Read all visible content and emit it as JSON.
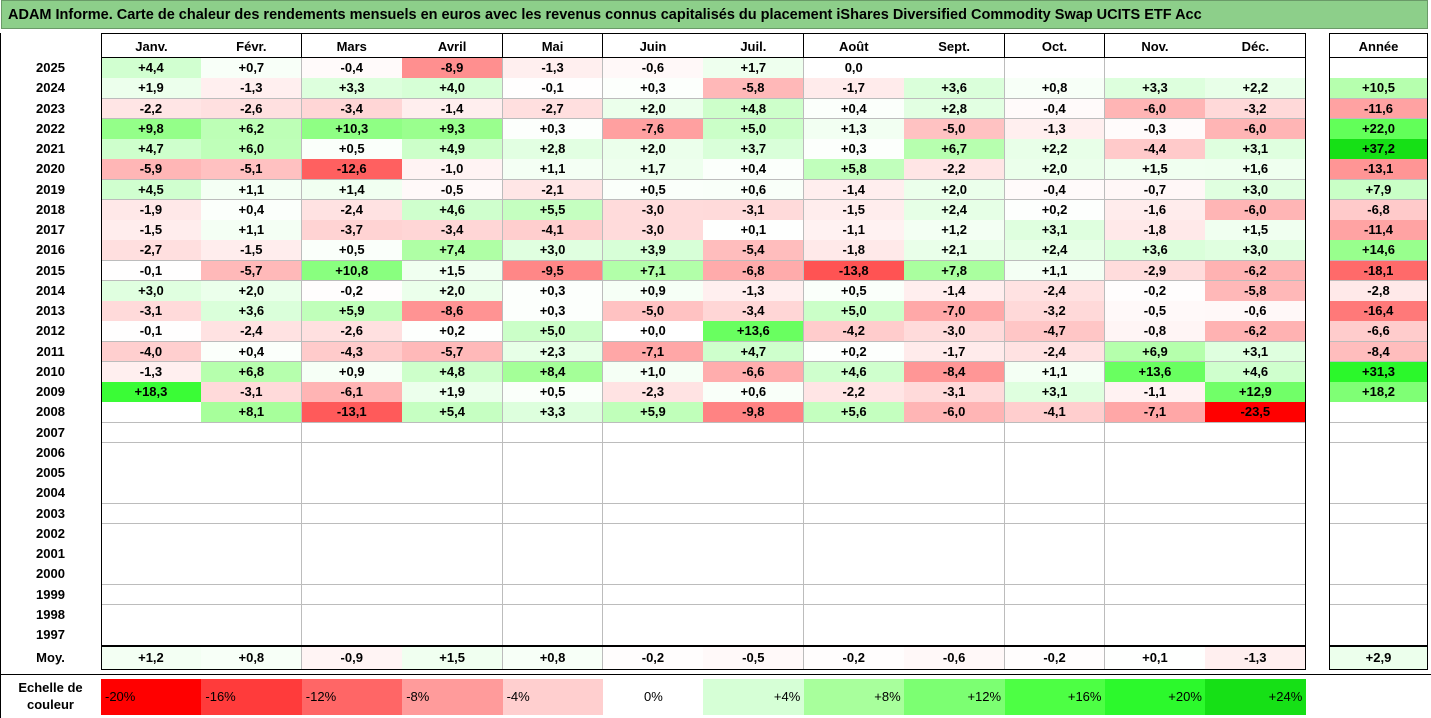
{
  "title": "ADAM Informe. Carte de chaleur des rendements mensuels en euros avec les revenus connus capitalisés du placement iShares Diversified Commodity Swap UCITS ETF Acc",
  "months": [
    "Janv.",
    "Févr.",
    "Mars",
    "Avril",
    "Mai",
    "Juin",
    "Juil.",
    "Août",
    "Sept.",
    "Oct.",
    "Nov.",
    "Déc."
  ],
  "year_header": "Année",
  "avg_label": "Moy.",
  "scale_label": "Echelle de couleur",
  "chart_data": {
    "type": "heatmap",
    "title": "ADAM Informe. Carte de chaleur des rendements mensuels en euros avec les revenus connus capitalisés du placement iShares Diversified Commodity Swap UCITS ETF Acc",
    "columns": [
      "Janv.",
      "Févr.",
      "Mars",
      "Avril",
      "Mai",
      "Juin",
      "Juil.",
      "Août",
      "Sept.",
      "Oct.",
      "Nov.",
      "Déc.",
      "Année"
    ],
    "rows": [
      {
        "year": "2025",
        "values": [
          "+4,4",
          "+0,7",
          "-0,4",
          "-8,9",
          "-1,3",
          "-0,6",
          "+1,7",
          "0,0",
          "",
          "",
          "",
          ""
        ],
        "annual": ""
      },
      {
        "year": "2024",
        "values": [
          "+1,9",
          "-1,3",
          "+3,3",
          "+4,0",
          "-0,1",
          "+0,3",
          "-5,8",
          "-1,7",
          "+3,6",
          "+0,8",
          "+3,3",
          "+2,2"
        ],
        "annual": "+10,5"
      },
      {
        "year": "2023",
        "values": [
          "-2,2",
          "-2,6",
          "-3,4",
          "-1,4",
          "-2,7",
          "+2,0",
          "+4,8",
          "+0,4",
          "+2,8",
          "-0,4",
          "-6,0",
          "-3,2"
        ],
        "annual": "-11,6"
      },
      {
        "year": "2022",
        "values": [
          "+9,8",
          "+6,2",
          "+10,3",
          "+9,3",
          "+0,3",
          "-7,6",
          "+5,0",
          "+1,3",
          "-5,0",
          "-1,3",
          "-0,3",
          "-6,0"
        ],
        "annual": "+22,0"
      },
      {
        "year": "2021",
        "values": [
          "+4,7",
          "+6,0",
          "+0,5",
          "+4,9",
          "+2,8",
          "+2,0",
          "+3,7",
          "+0,3",
          "+6,7",
          "+2,2",
          "-4,4",
          "+3,1"
        ],
        "annual": "+37,2"
      },
      {
        "year": "2020",
        "values": [
          "-5,9",
          "-5,1",
          "-12,6",
          "-1,0",
          "+1,1",
          "+1,7",
          "+0,4",
          "+5,8",
          "-2,2",
          "+2,0",
          "+1,5",
          "+1,6"
        ],
        "annual": "-13,1"
      },
      {
        "year": "2019",
        "values": [
          "+4,5",
          "+1,1",
          "+1,4",
          "-0,5",
          "-2,1",
          "+0,5",
          "+0,6",
          "-1,4",
          "+2,0",
          "-0,4",
          "-0,7",
          "+3,0"
        ],
        "annual": "+7,9"
      },
      {
        "year": "2018",
        "values": [
          "-1,9",
          "+0,4",
          "-2,4",
          "+4,6",
          "+5,5",
          "-3,0",
          "-3,1",
          "-1,5",
          "+2,4",
          "+0,2",
          "-1,6",
          "-6,0"
        ],
        "annual": "-6,8"
      },
      {
        "year": "2017",
        "values": [
          "-1,5",
          "+1,1",
          "-3,7",
          "-3,4",
          "-4,1",
          "-3,0",
          "+0,1",
          "-1,1",
          "+1,2",
          "+3,1",
          "-1,8",
          "+1,5"
        ],
        "annual": "-11,4"
      },
      {
        "year": "2016",
        "values": [
          "-2,7",
          "-1,5",
          "+0,5",
          "+7,4",
          "+3,0",
          "+3,9",
          "-5,4",
          "-1,8",
          "+2,1",
          "+2,4",
          "+3,6",
          "+3,0"
        ],
        "annual": "+14,6"
      },
      {
        "year": "2015",
        "values": [
          "-0,1",
          "-5,7",
          "+10,8",
          "+1,5",
          "-9,5",
          "+7,1",
          "-6,8",
          "-13,8",
          "+7,8",
          "+1,1",
          "-2,9",
          "-6,2"
        ],
        "annual": "-18,1"
      },
      {
        "year": "2014",
        "values": [
          "+3,0",
          "+2,0",
          "-0,2",
          "+2,0",
          "+0,3",
          "+0,9",
          "-1,3",
          "+0,5",
          "-1,4",
          "-2,4",
          "-0,2",
          "-5,8"
        ],
        "annual": "-2,8"
      },
      {
        "year": "2013",
        "values": [
          "-3,1",
          "+3,6",
          "+5,9",
          "-8,6",
          "+0,3",
          "-5,0",
          "-3,4",
          "+5,0",
          "-7,0",
          "-3,2",
          "-0,5",
          "-0,6"
        ],
        "annual": "-16,4"
      },
      {
        "year": "2012",
        "values": [
          "-0,1",
          "-2,4",
          "-2,6",
          "+0,2",
          "+5,0",
          "+0,0",
          "+13,6",
          "-4,2",
          "-3,0",
          "-4,7",
          "-0,8",
          "-6,2"
        ],
        "annual": "-6,6"
      },
      {
        "year": "2011",
        "values": [
          "-4,0",
          "+0,4",
          "-4,3",
          "-5,7",
          "+2,3",
          "-7,1",
          "+4,7",
          "+0,2",
          "-1,7",
          "-2,4",
          "+6,9",
          "+3,1"
        ],
        "annual": "-8,4"
      },
      {
        "year": "2010",
        "values": [
          "-1,3",
          "+6,8",
          "+0,9",
          "+4,8",
          "+8,4",
          "+1,0",
          "-6,6",
          "+4,6",
          "-8,4",
          "+1,1",
          "+13,6",
          "+4,6"
        ],
        "annual": "+31,3"
      },
      {
        "year": "2009",
        "values": [
          "+18,3",
          "-3,1",
          "-6,1",
          "+1,9",
          "+0,5",
          "-2,3",
          "+0,6",
          "-2,2",
          "-3,1",
          "+3,1",
          "-1,1",
          "+12,9"
        ],
        "annual": "+18,2"
      },
      {
        "year": "2008",
        "values": [
          "",
          "+8,1",
          "-13,1",
          "+5,4",
          "+3,3",
          "+5,9",
          "-9,8",
          "+5,6",
          "-6,0",
          "-4,1",
          "-7,1",
          "-23,5"
        ],
        "annual": ""
      },
      {
        "year": "2007",
        "values": [
          "",
          "",
          "",
          "",
          "",
          "",
          "",
          "",
          "",
          "",
          "",
          ""
        ],
        "annual": ""
      },
      {
        "year": "2006",
        "values": [
          "",
          "",
          "",
          "",
          "",
          "",
          "",
          "",
          "",
          "",
          "",
          ""
        ],
        "annual": ""
      },
      {
        "year": "2005",
        "values": [
          "",
          "",
          "",
          "",
          "",
          "",
          "",
          "",
          "",
          "",
          "",
          ""
        ],
        "annual": ""
      },
      {
        "year": "2004",
        "values": [
          "",
          "",
          "",
          "",
          "",
          "",
          "",
          "",
          "",
          "",
          "",
          ""
        ],
        "annual": ""
      },
      {
        "year": "2003",
        "values": [
          "",
          "",
          "",
          "",
          "",
          "",
          "",
          "",
          "",
          "",
          "",
          ""
        ],
        "annual": ""
      },
      {
        "year": "2002",
        "values": [
          "",
          "",
          "",
          "",
          "",
          "",
          "",
          "",
          "",
          "",
          "",
          ""
        ],
        "annual": ""
      },
      {
        "year": "2001",
        "values": [
          "",
          "",
          "",
          "",
          "",
          "",
          "",
          "",
          "",
          "",
          "",
          ""
        ],
        "annual": ""
      },
      {
        "year": "2000",
        "values": [
          "",
          "",
          "",
          "",
          "",
          "",
          "",
          "",
          "",
          "",
          "",
          ""
        ],
        "annual": ""
      },
      {
        "year": "1999",
        "values": [
          "",
          "",
          "",
          "",
          "",
          "",
          "",
          "",
          "",
          "",
          "",
          ""
        ],
        "annual": ""
      },
      {
        "year": "1998",
        "values": [
          "",
          "",
          "",
          "",
          "",
          "",
          "",
          "",
          "",
          "",
          "",
          ""
        ],
        "annual": ""
      },
      {
        "year": "1997",
        "values": [
          "",
          "",
          "",
          "",
          "",
          "",
          "",
          "",
          "",
          "",
          "",
          ""
        ],
        "annual": ""
      }
    ],
    "averages": [
      "+1,2",
      "+0,8",
      "-0,9",
      "+1,5",
      "+0,8",
      "-0,2",
      "-0,5",
      "-0,2",
      "-0,6",
      "-0,2",
      "+0,1",
      "-1,3"
    ],
    "average_annual": "+2,9",
    "color_scale": [
      {
        "label": "-20%",
        "value": -20,
        "color": "#ff0000"
      },
      {
        "label": "-16%",
        "value": -16,
        "color": "#ff3b3b"
      },
      {
        "label": "-12%",
        "value": -12,
        "color": "#ff6666"
      },
      {
        "label": "-8%",
        "value": -8,
        "color": "#ff9b9b"
      },
      {
        "label": "-4%",
        "value": -4,
        "color": "#ffcfcf"
      },
      {
        "label": "0%",
        "value": 0,
        "color": "#ffffff"
      },
      {
        "label": "+4%",
        "value": 4,
        "color": "#d6ffd6"
      },
      {
        "label": "+8%",
        "value": 8,
        "color": "#a8ff9c"
      },
      {
        "label": "+12%",
        "value": 12,
        "color": "#7cff72"
      },
      {
        "label": "+16%",
        "value": 16,
        "color": "#4dff44"
      },
      {
        "label": "+20%",
        "value": 20,
        "color": "#2cf92c"
      },
      {
        "label": "+24%",
        "value": 24,
        "color": "#16e016"
      }
    ]
  }
}
